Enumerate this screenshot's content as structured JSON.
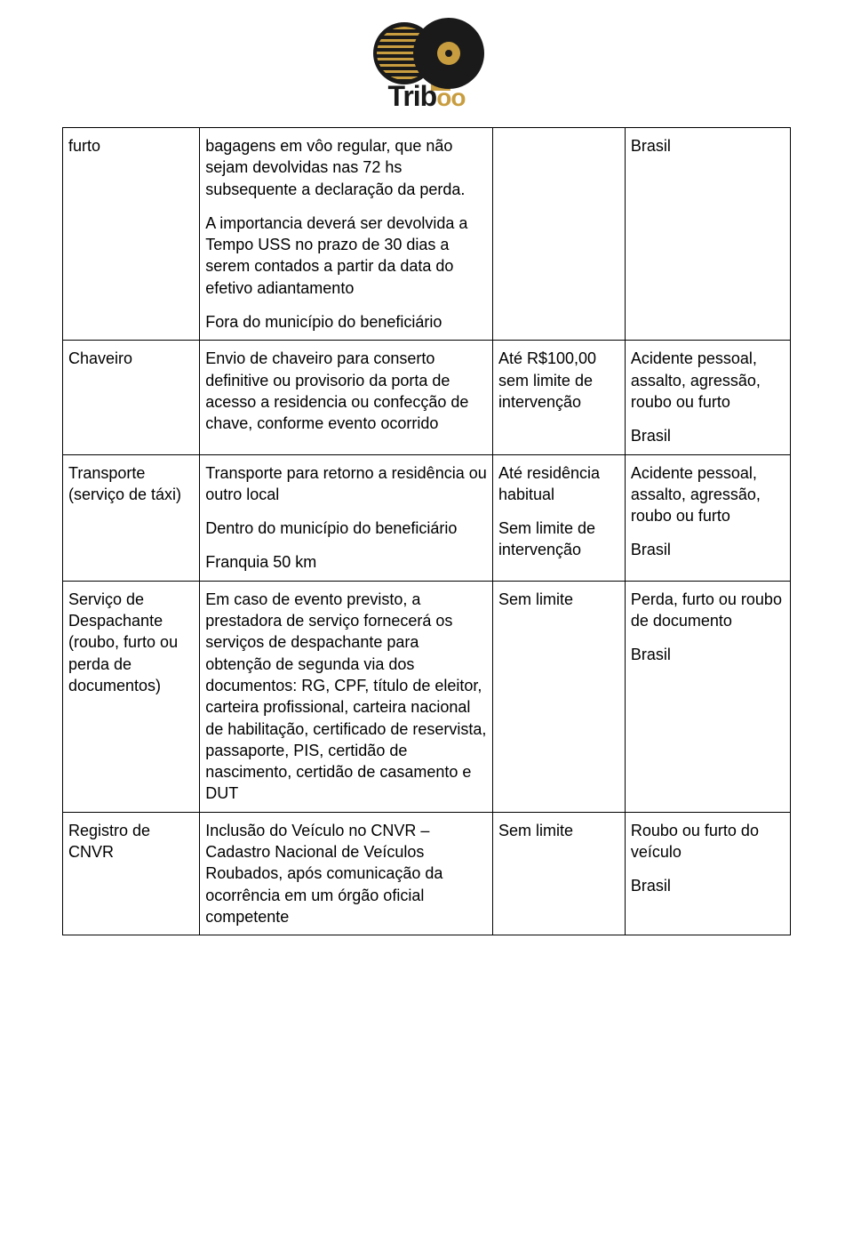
{
  "logo": {
    "text_prefix": "Trib",
    "text_suffix": "oo"
  },
  "rows": [
    {
      "c1": "furto",
      "c2_paras": [
        "bagagens em vôo regular, que não sejam devolvidas nas 72 hs subsequente a declaração da perda.",
        "A importancia deverá ser devolvida a Tempo USS no prazo de 30 dias a serem contados a partir da data do efetivo adiantamento",
        "Fora do município do beneficiário"
      ],
      "c3_paras": [],
      "c4_paras": [
        "Brasil"
      ]
    },
    {
      "c1": "Chaveiro",
      "c2_paras": [
        "Envio de chaveiro para conserto definitive ou provisorio da porta de acesso a residencia ou confecção de chave, conforme evento ocorrido"
      ],
      "c3_paras": [
        "Até R$100,00 sem limite de intervenção"
      ],
      "c4_paras": [
        "Acidente pessoal, assalto, agressão, roubo ou furto",
        "Brasil"
      ]
    },
    {
      "c1": "Transporte (serviço de táxi)",
      "c2_paras": [
        "Transporte para retorno a residência ou outro local",
        "Dentro do município do beneficiário",
        "Franquia 50 km"
      ],
      "c3_paras": [
        "Até residência habitual",
        "Sem limite de intervenção"
      ],
      "c4_paras": [
        "Acidente pessoal, assalto, agressão, roubo ou furto",
        "Brasil"
      ]
    },
    {
      "c1": "Serviço de Despachante (roubo, furto ou perda de documentos)",
      "c2_paras": [
        "Em caso de evento previsto, a prestadora de serviço fornecerá os serviços de despachante para obtenção de segunda via dos documentos: RG, CPF, título de eleitor, carteira profissional, carteira nacional de habilitação, certificado de reservista, passaporte, PIS, certidão de nascimento, certidão de casamento e DUT"
      ],
      "c3_paras": [
        "Sem limite"
      ],
      "c4_paras": [
        "Perda, furto ou roubo de documento",
        "Brasil"
      ]
    },
    {
      "c1": "Registro de CNVR",
      "c2_paras": [
        "Inclusão do Veículo no CNVR – Cadastro Nacional de Veículos Roubados, após comunicação da ocorrência em um órgão oficial competente"
      ],
      "c3_paras": [
        "Sem limite"
      ],
      "c4_paras": [
        "Roubo ou furto do veículo",
        "Brasil"
      ]
    }
  ]
}
